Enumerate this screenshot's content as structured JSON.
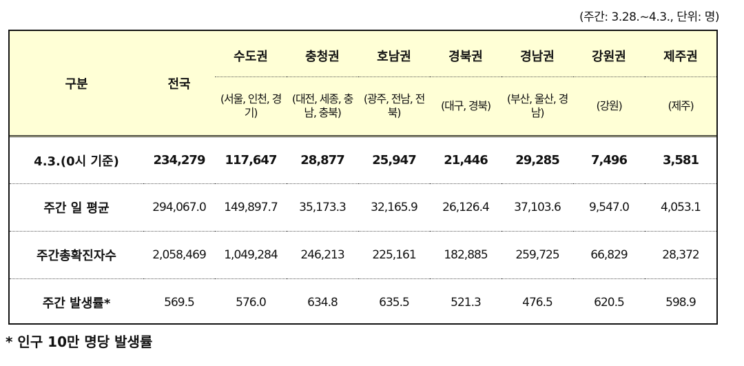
{
  "caption": "(주간: 3.28.~4.3., 단위: 명)",
  "header": {
    "category": "구분",
    "national": "전국",
    "regions": [
      {
        "name": "수도권",
        "sub": "(서울, 인천, 경기)"
      },
      {
        "name": "충청권",
        "sub": "(대전, 세종, 충남, 충북)"
      },
      {
        "name": "호남권",
        "sub": "(광주, 전남, 전북)"
      },
      {
        "name": "경북권",
        "sub": "(대구, 경북)"
      },
      {
        "name": "경남권",
        "sub": "(부산, 울산, 경남)"
      },
      {
        "name": "강원권",
        "sub": "(강원)"
      },
      {
        "name": "제주권",
        "sub": "(제주)"
      }
    ]
  },
  "rows": [
    {
      "label": "4.3.(0시 기준)",
      "values": [
        "234,279",
        "117,647",
        "28,877",
        "25,947",
        "21,446",
        "29,285",
        "7,496",
        "3,581"
      ]
    },
    {
      "label": "주간 일 평균",
      "values": [
        "294,067.0",
        "149,897.7",
        "35,173.3",
        "32,165.9",
        "26,126.4",
        "37,103.6",
        "9,547.0",
        "4,053.1"
      ]
    },
    {
      "label": "주간총확진자수",
      "values": [
        "2,058,469",
        "1,049,284",
        "246,213",
        "225,161",
        "182,885",
        "259,725",
        "66,829",
        "28,372"
      ]
    },
    {
      "label": "주간 발생률*",
      "values": [
        "569.5",
        "576.0",
        "634.8",
        "635.5",
        "521.3",
        "476.5",
        "620.5",
        "598.9"
      ]
    }
  ],
  "footnote": "* 인구 10만 명당 발생률"
}
